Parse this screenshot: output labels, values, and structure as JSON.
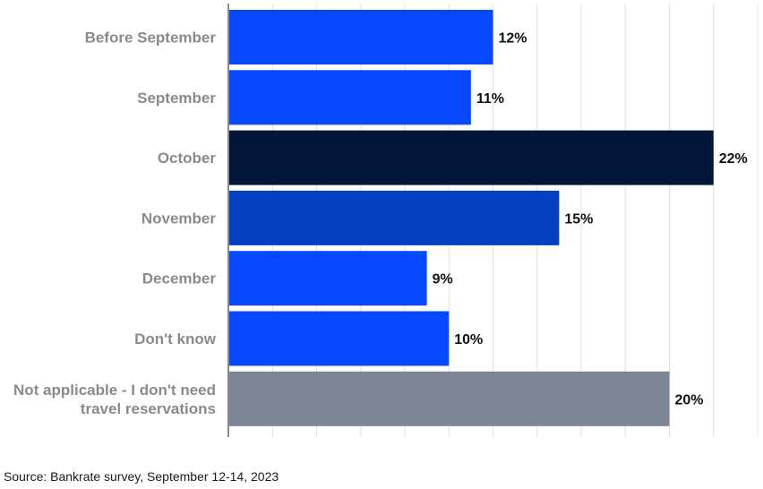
{
  "chart_data": {
    "type": "bar",
    "orientation": "horizontal",
    "categories": [
      [
        "Before September"
      ],
      [
        "September"
      ],
      [
        "October"
      ],
      [
        "November"
      ],
      [
        "December"
      ],
      [
        "Don't know"
      ],
      [
        "Not applicable - I don't need",
        "travel reservations"
      ]
    ],
    "values": [
      12,
      11,
      22,
      15,
      9,
      10,
      20
    ],
    "value_labels": [
      "12%",
      "11%",
      "22%",
      "15%",
      "9%",
      "10%",
      "20%"
    ],
    "bar_colors": [
      "#0748fd",
      "#0748fd",
      "#011639",
      "#0440c0",
      "#0748fd",
      "#0748fd",
      "#7e8596"
    ],
    "xlim": [
      0,
      24
    ],
    "grid": "vertical",
    "grid_color": "#dfe0e4",
    "axis_color": "#8a8a8a"
  },
  "source": "Source: Bankrate survey, September 12-14, 2023"
}
